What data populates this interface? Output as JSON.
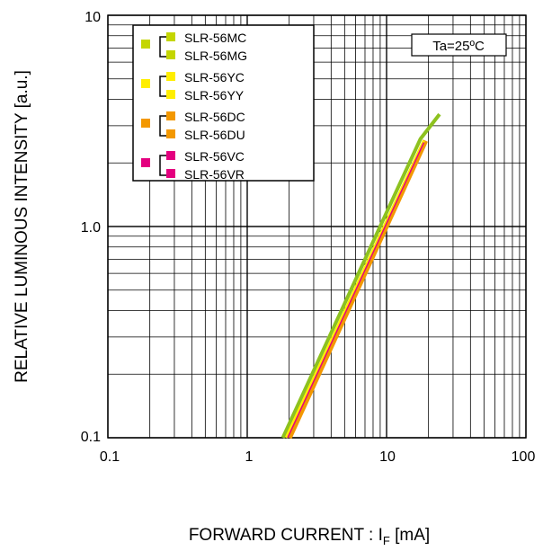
{
  "chart_data": {
    "type": "line",
    "xlabel": "FORWARD CURRENT : I",
    "xlabel_sub": "F",
    "xlabel_unit": " [mA]",
    "ylabel": "RELATIVE LUMINOUS INTENSITY [a.u.]",
    "x_scale": "log",
    "y_scale": "log",
    "xlim": [
      0.1,
      100
    ],
    "ylim": [
      0.1,
      10
    ],
    "x_tick_labels": [
      "0.1",
      "1",
      "10",
      "100"
    ],
    "y_tick_labels": [
      "0.1",
      "1.0",
      "10"
    ],
    "grid": true,
    "annotation": "Ta=25ºC",
    "legend_position": "top-left",
    "legend": [
      {
        "color": "#c4d600",
        "labels": [
          "SLR-56MC",
          "SLR-56MG"
        ]
      },
      {
        "color": "#ffee00",
        "labels": [
          "SLR-56YC",
          "SLR-56YY"
        ]
      },
      {
        "color": "#f39800",
        "labels": [
          "SLR-56DC",
          "SLR-56DU"
        ]
      },
      {
        "color": "#e4007f",
        "labels": [
          "SLR-56VC",
          "SLR-56VR"
        ]
      }
    ],
    "series": [
      {
        "color": "#8dc21f",
        "x": [
          1.8,
          17.5,
          24
        ],
        "y": [
          0.1,
          2.6,
          3.4
        ],
        "width": 4
      },
      {
        "color": "#f39800",
        "x": [
          2.0,
          19
        ],
        "y": [
          0.1,
          2.55
        ],
        "width": 6
      },
      {
        "color": "#ffee00",
        "x": [
          1.9,
          18.5
        ],
        "y": [
          0.1,
          2.55
        ],
        "width": 3
      },
      {
        "color": "#e4007f",
        "x": [
          1.95,
          18.5
        ],
        "y": [
          0.1,
          2.5
        ],
        "width": 1.5
      }
    ]
  }
}
